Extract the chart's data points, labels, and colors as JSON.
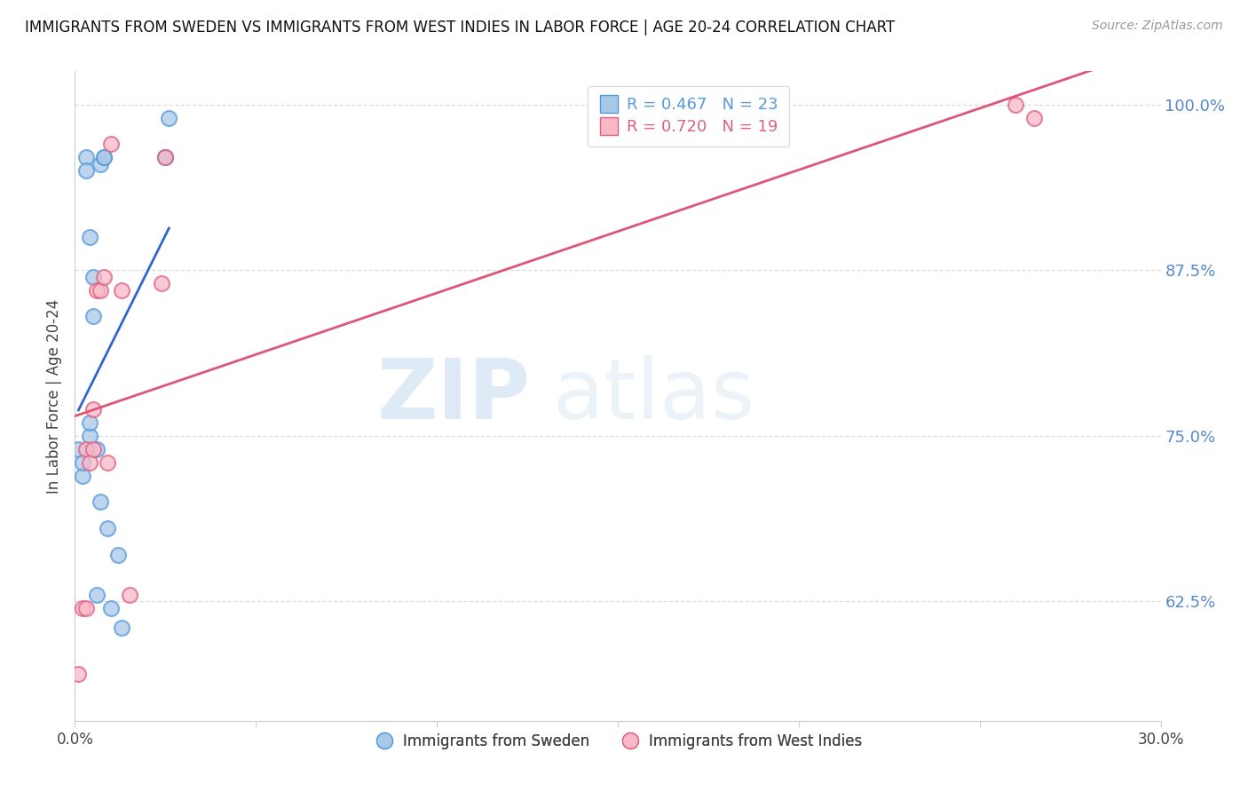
{
  "title": "IMMIGRANTS FROM SWEDEN VS IMMIGRANTS FROM WEST INDIES IN LABOR FORCE | AGE 20-24 CORRELATION CHART",
  "source": "Source: ZipAtlas.com",
  "ylabel": "In Labor Force | Age 20-24",
  "right_yticks": [
    0.625,
    0.75,
    0.875,
    1.0
  ],
  "right_yticklabels": [
    "62.5%",
    "75.0%",
    "87.5%",
    "100.0%"
  ],
  "xmin": 0.0,
  "xmax": 0.3,
  "ymin": 0.535,
  "ymax": 1.025,
  "sweden_color": "#a8c8e8",
  "sweden_edge": "#5599dd",
  "west_indies_color": "#f8b8c8",
  "west_indies_edge": "#e06080",
  "sweden_line_color": "#3366cc",
  "west_indies_line_color": "#dd5577",
  "background_color": "#ffffff",
  "grid_color": "#dddddd",
  "title_color": "#111111",
  "watermark_zip": "ZIP",
  "watermark_atlas": "atlas",
  "sweden_x": [
    0.001,
    0.002,
    0.002,
    0.003,
    0.003,
    0.004,
    0.004,
    0.004,
    0.005,
    0.005,
    0.006,
    0.006,
    0.007,
    0.007,
    0.008,
    0.008,
    0.009,
    0.01,
    0.012,
    0.013,
    0.025,
    0.025,
    0.026
  ],
  "sweden_y": [
    0.74,
    0.72,
    0.73,
    0.96,
    0.95,
    0.75,
    0.76,
    0.9,
    0.87,
    0.84,
    0.63,
    0.74,
    0.7,
    0.955,
    0.96,
    0.96,
    0.68,
    0.62,
    0.66,
    0.605,
    0.96,
    0.96,
    0.99
  ],
  "west_indies_x": [
    0.001,
    0.002,
    0.003,
    0.003,
    0.004,
    0.005,
    0.005,
    0.006,
    0.007,
    0.008,
    0.009,
    0.01,
    0.013,
    0.015,
    0.024,
    0.025,
    0.26,
    0.265
  ],
  "west_indies_y": [
    0.57,
    0.62,
    0.62,
    0.74,
    0.73,
    0.74,
    0.77,
    0.86,
    0.86,
    0.87,
    0.73,
    0.97,
    0.86,
    0.63,
    0.865,
    0.96,
    1.0,
    0.99
  ],
  "sweden_line_xrange": [
    0.001,
    0.026
  ],
  "west_indies_line_xrange": [
    0.0,
    0.3
  ]
}
